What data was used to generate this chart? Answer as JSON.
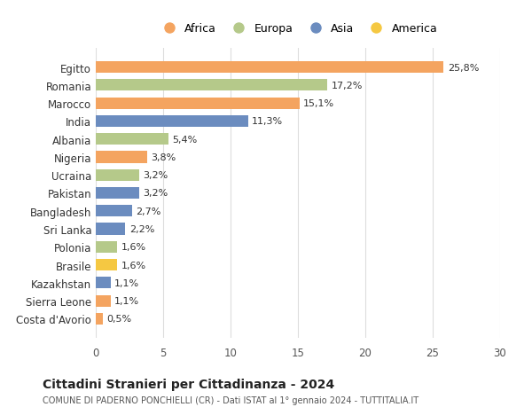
{
  "countries": [
    "Egitto",
    "Romania",
    "Marocco",
    "India",
    "Albania",
    "Nigeria",
    "Ucraina",
    "Pakistan",
    "Bangladesh",
    "Sri Lanka",
    "Polonia",
    "Brasile",
    "Kazakhstan",
    "Sierra Leone",
    "Costa d'Avorio"
  ],
  "values": [
    25.8,
    17.2,
    15.1,
    11.3,
    5.4,
    3.8,
    3.2,
    3.2,
    2.7,
    2.2,
    1.6,
    1.6,
    1.1,
    1.1,
    0.5
  ],
  "labels": [
    "25,8%",
    "17,2%",
    "15,1%",
    "11,3%",
    "5,4%",
    "3,8%",
    "3,2%",
    "3,2%",
    "2,7%",
    "2,2%",
    "1,6%",
    "1,6%",
    "1,1%",
    "1,1%",
    "0,5%"
  ],
  "continents": [
    "Africa",
    "Europa",
    "Africa",
    "Asia",
    "Europa",
    "Africa",
    "Europa",
    "Asia",
    "Asia",
    "Asia",
    "Europa",
    "America",
    "Asia",
    "Africa",
    "Africa"
  ],
  "colors": {
    "Africa": "#F4A460",
    "Europa": "#B5C98A",
    "Asia": "#6B8CBF",
    "America": "#F5C842"
  },
  "legend_order": [
    "Africa",
    "Europa",
    "Asia",
    "America"
  ],
  "title": "Cittadini Stranieri per Cittadinanza - 2024",
  "subtitle": "COMUNE DI PADERNO PONCHIELLI (CR) - Dati ISTAT al 1° gennaio 2024 - TUTTITALIA.IT",
  "xlim": [
    0,
    30
  ],
  "xticks": [
    0,
    5,
    10,
    15,
    20,
    25,
    30
  ],
  "background_color": "#ffffff",
  "grid_color": "#dddddd",
  "bar_height": 0.65
}
